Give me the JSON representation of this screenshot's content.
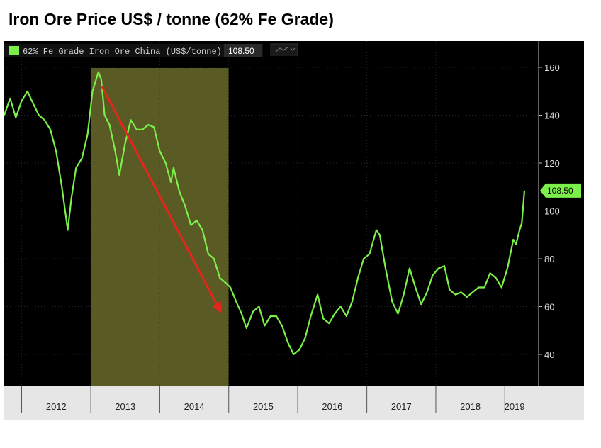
{
  "title": "Iron Ore Price US$ / tonne  (62% Fe Grade)",
  "colors": {
    "background": "#000000",
    "series": "#7cf04a",
    "highlight_band": "#5a5a24",
    "arrow": "#e8241c",
    "axis_strip": "#e6e6e6"
  },
  "chart_data": {
    "type": "line",
    "title": "Iron Ore Price US$ / tonne  (62% Fe Grade)",
    "xlabel": "",
    "ylabel": "",
    "ylim": [
      30,
      170
    ],
    "y_ticks": [
      40,
      60,
      80,
      100,
      120,
      140,
      160
    ],
    "x_ticks": [
      "2012",
      "2013",
      "2014",
      "2015",
      "2016",
      "2017",
      "2018",
      "2019"
    ],
    "xlim": [
      "2011-10-01",
      "2019-04-15"
    ],
    "grid": true,
    "legend_placement": "top-left",
    "series": [
      {
        "name": "62% Fe Grade Iron Ore China (US$/tonne)",
        "last_value": "108.50",
        "points": [
          [
            "2011-10-01",
            140
          ],
          [
            "2011-11-01",
            147
          ],
          [
            "2011-12-01",
            139
          ],
          [
            "2012-01-01",
            146
          ],
          [
            "2012-02-01",
            150
          ],
          [
            "2012-03-01",
            145
          ],
          [
            "2012-04-01",
            140
          ],
          [
            "2012-05-01",
            138
          ],
          [
            "2012-06-01",
            134
          ],
          [
            "2012-07-01",
            125
          ],
          [
            "2012-08-01",
            110
          ],
          [
            "2012-09-01",
            92
          ],
          [
            "2012-09-20",
            105
          ],
          [
            "2012-10-15",
            118
          ],
          [
            "2012-11-15",
            122
          ],
          [
            "2012-12-15",
            132
          ],
          [
            "2013-01-10",
            150
          ],
          [
            "2013-02-10",
            158
          ],
          [
            "2013-02-25",
            155
          ],
          [
            "2013-03-15",
            140
          ],
          [
            "2013-04-10",
            136
          ],
          [
            "2013-05-10",
            125
          ],
          [
            "2013-06-01",
            115
          ],
          [
            "2013-07-01",
            128
          ],
          [
            "2013-08-01",
            138
          ],
          [
            "2013-09-01",
            134
          ],
          [
            "2013-10-01",
            134
          ],
          [
            "2013-11-01",
            136
          ],
          [
            "2013-12-01",
            135
          ],
          [
            "2014-01-01",
            125
          ],
          [
            "2014-02-01",
            120
          ],
          [
            "2014-03-01",
            112
          ],
          [
            "2014-03-15",
            118
          ],
          [
            "2014-04-15",
            108
          ],
          [
            "2014-05-15",
            102
          ],
          [
            "2014-06-15",
            94
          ],
          [
            "2014-07-15",
            96
          ],
          [
            "2014-08-15",
            92
          ],
          [
            "2014-09-15",
            82
          ],
          [
            "2014-10-15",
            80
          ],
          [
            "2014-11-15",
            72
          ],
          [
            "2014-12-15",
            70
          ],
          [
            "2015-01-10",
            68
          ],
          [
            "2015-02-10",
            62
          ],
          [
            "2015-03-10",
            57
          ],
          [
            "2015-04-05",
            51
          ],
          [
            "2015-05-10",
            58
          ],
          [
            "2015-06-10",
            60
          ],
          [
            "2015-07-10",
            52
          ],
          [
            "2015-08-10",
            56
          ],
          [
            "2015-09-10",
            56
          ],
          [
            "2015-10-10",
            52
          ],
          [
            "2015-11-10",
            45
          ],
          [
            "2015-12-10",
            40
          ],
          [
            "2016-01-10",
            42
          ],
          [
            "2016-02-10",
            47
          ],
          [
            "2016-03-10",
            56
          ],
          [
            "2016-04-15",
            65
          ],
          [
            "2016-05-15",
            55
          ],
          [
            "2016-06-15",
            53
          ],
          [
            "2016-07-15",
            57
          ],
          [
            "2016-08-15",
            60
          ],
          [
            "2016-09-15",
            56
          ],
          [
            "2016-10-15",
            62
          ],
          [
            "2016-11-15",
            72
          ],
          [
            "2016-12-15",
            80
          ],
          [
            "2017-01-15",
            82
          ],
          [
            "2017-02-20",
            92
          ],
          [
            "2017-03-10",
            90
          ],
          [
            "2017-04-10",
            76
          ],
          [
            "2017-05-15",
            62
          ],
          [
            "2017-06-15",
            57
          ],
          [
            "2017-07-15",
            65
          ],
          [
            "2017-08-15",
            76
          ],
          [
            "2017-09-15",
            68
          ],
          [
            "2017-10-15",
            61
          ],
          [
            "2017-11-15",
            66
          ],
          [
            "2017-12-15",
            73
          ],
          [
            "2018-01-15",
            76
          ],
          [
            "2018-02-15",
            77
          ],
          [
            "2018-03-15",
            67
          ],
          [
            "2018-04-15",
            65
          ],
          [
            "2018-05-15",
            66
          ],
          [
            "2018-06-15",
            64
          ],
          [
            "2018-07-15",
            66
          ],
          [
            "2018-08-15",
            68
          ],
          [
            "2018-09-15",
            68
          ],
          [
            "2018-10-15",
            74
          ],
          [
            "2018-11-15",
            72
          ],
          [
            "2018-12-15",
            68
          ],
          [
            "2019-01-15",
            76
          ],
          [
            "2019-02-15",
            88
          ],
          [
            "2019-03-01",
            86
          ],
          [
            "2019-03-20",
            92
          ],
          [
            "2019-04-01",
            95
          ],
          [
            "2019-04-15",
            108.5
          ]
        ]
      }
    ],
    "highlight_period": [
      "2013-01-01",
      "2014-12-31"
    ],
    "annotation_arrow": {
      "from": [
        "2013-03-01",
        152
      ],
      "to": [
        "2014-11-25",
        57
      ]
    }
  }
}
